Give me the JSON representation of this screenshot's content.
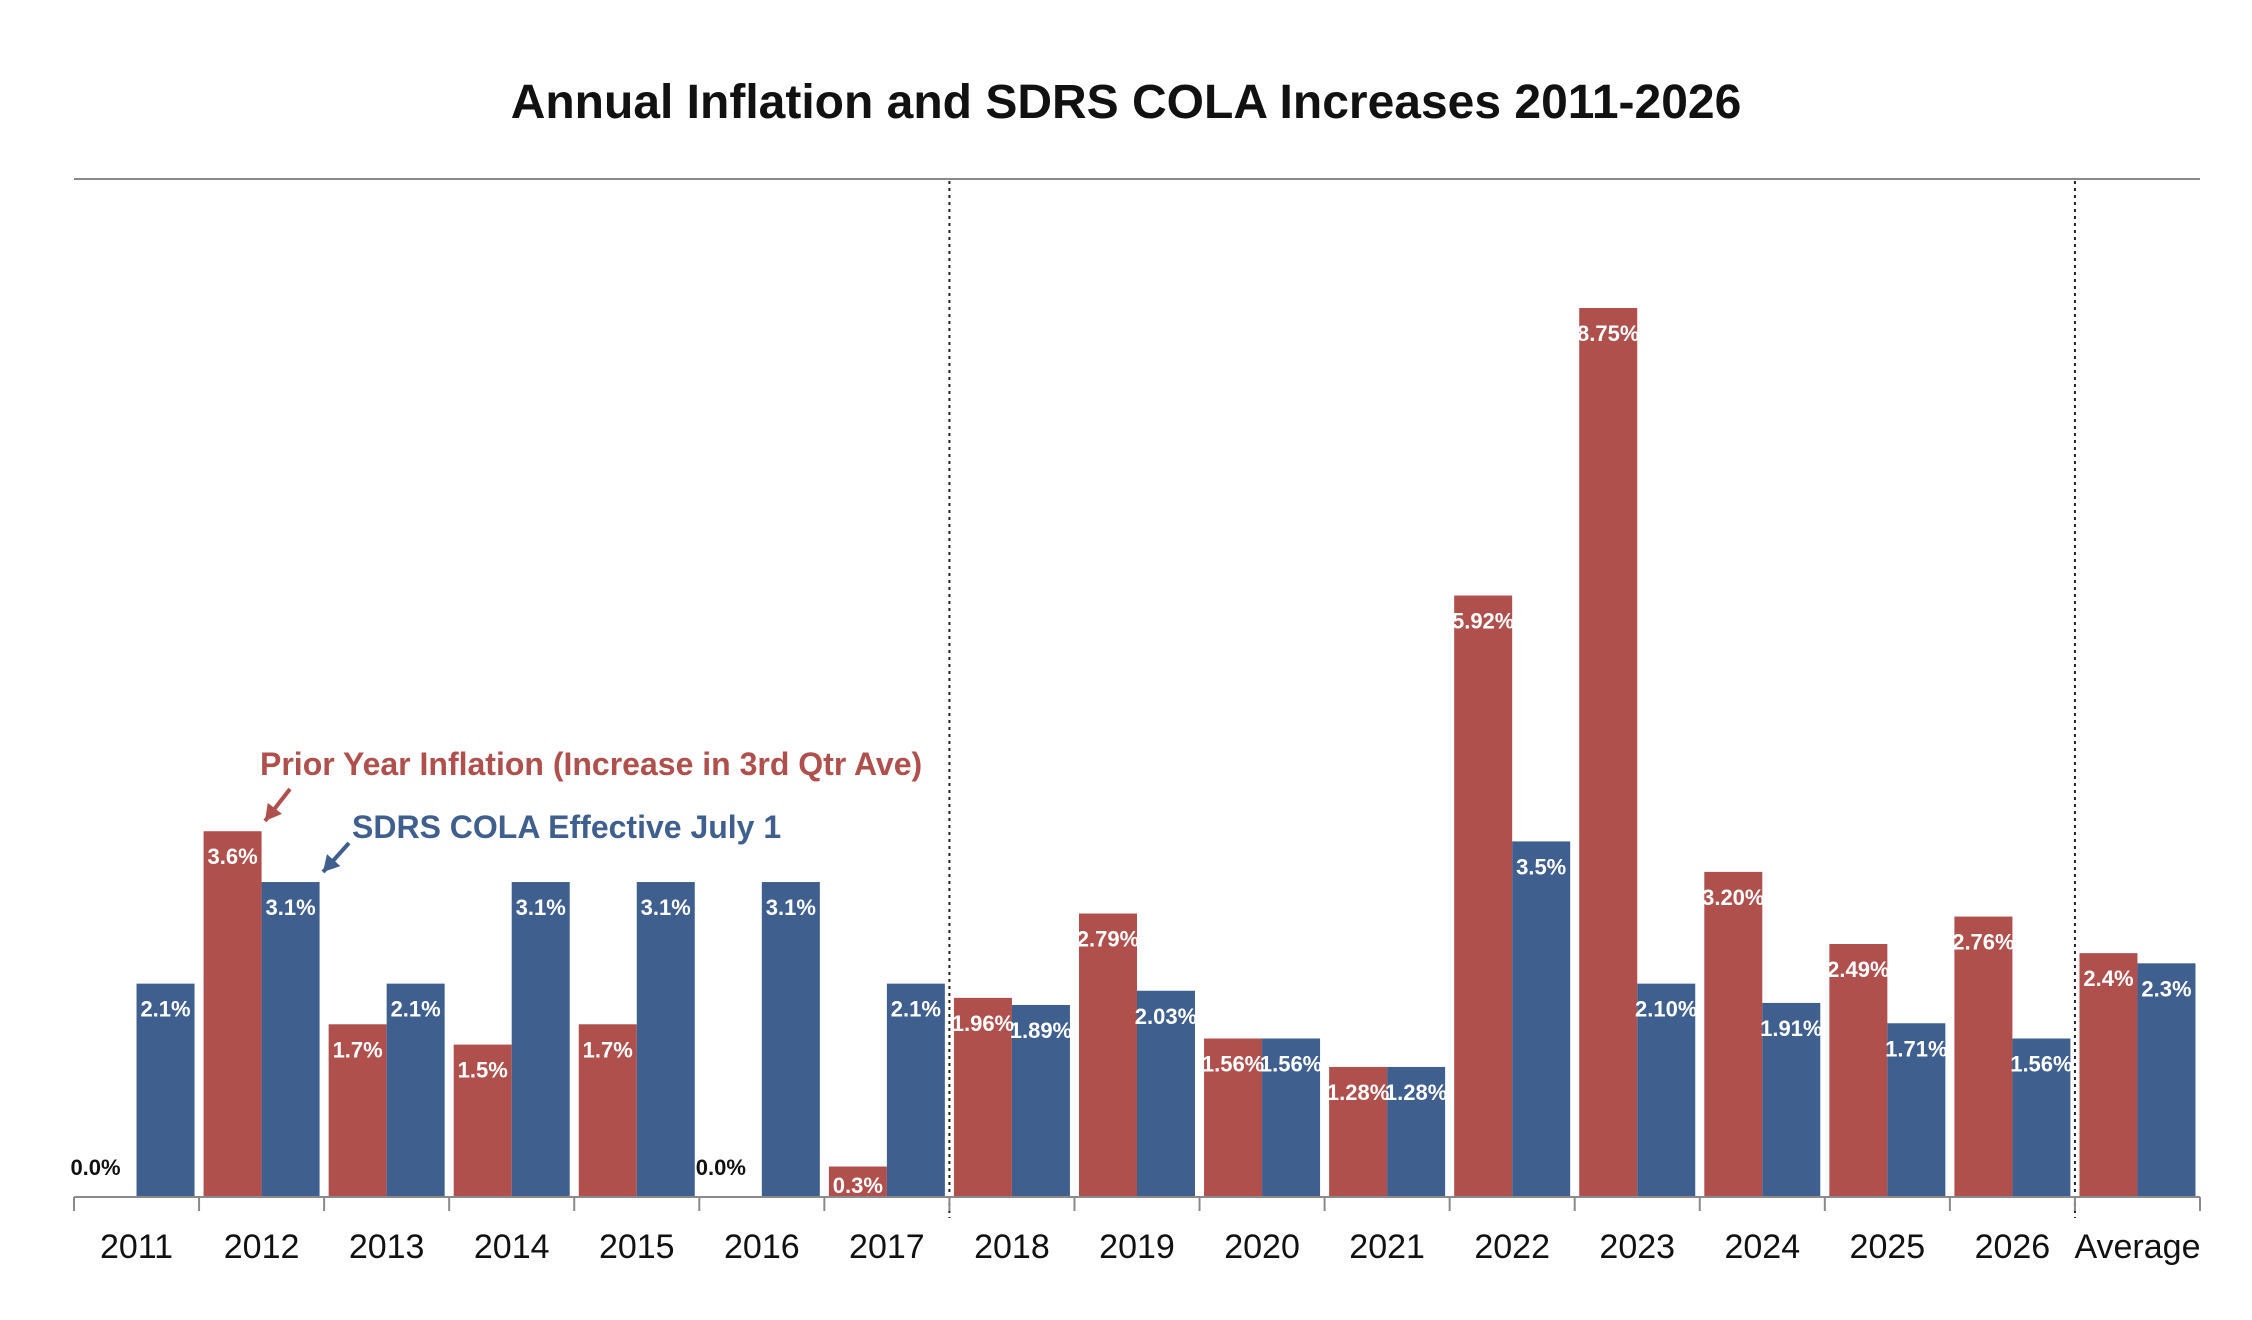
{
  "chart_data": {
    "type": "bar",
    "title": "Annual Inflation and SDRS COLA Increases 2011-2026",
    "xlabel": "",
    "ylabel": "",
    "ylim": [
      0,
      9.5
    ],
    "grid": false,
    "categories": [
      "2011",
      "2012",
      "2013",
      "2014",
      "2015",
      "2016",
      "2017",
      "2018",
      "2019",
      "2020",
      "2021",
      "2022",
      "2023",
      "2024",
      "2025",
      "2026",
      "Average"
    ],
    "series": [
      {
        "name": "Prior Year Inflation (Increase in 3rd Qtr Ave)",
        "color": "#B0504C",
        "values": [
          0.0,
          3.6,
          1.7,
          1.5,
          1.7,
          0.0,
          0.3,
          1.96,
          2.79,
          1.56,
          1.28,
          5.92,
          8.75,
          3.2,
          2.49,
          2.76,
          2.4
        ],
        "labels": [
          "0.0%",
          "3.6%",
          "1.7%",
          "1.5%",
          "1.7%",
          "0.0%",
          "0.3%",
          "1.96%",
          "2.79%",
          "1.56%",
          "1.28%",
          "5.92%",
          "8.75%",
          "3.20%",
          "2.49%",
          "2.76%",
          "2.4%"
        ]
      },
      {
        "name": "SDRS COLA Effective July 1",
        "color": "#3F5F8F",
        "values": [
          2.1,
          3.1,
          2.1,
          3.1,
          3.1,
          3.1,
          2.1,
          1.89,
          2.03,
          1.56,
          1.28,
          3.5,
          2.1,
          1.91,
          1.71,
          1.56,
          2.3
        ],
        "labels": [
          "2.1%",
          "3.1%",
          "2.1%",
          "3.1%",
          "3.1%",
          "3.1%",
          "2.1%",
          "1.89%",
          "2.03%",
          "1.56%",
          "1.28%",
          "3.5%",
          "2.10%",
          "1.91%",
          "1.71%",
          "1.56%",
          "2.3%"
        ]
      }
    ],
    "annotations": [
      {
        "text": "Prior Year Inflation (Increase in 3rd Qtr Ave)",
        "points_to": "2012 inflation bar",
        "color": "#B0504C"
      },
      {
        "text": "SDRS COLA Effective July 1",
        "points_to": "2012 COLA bar",
        "color": "#3F5F8F"
      }
    ],
    "period_dividers": [
      "between 2017 and 2018",
      "between 2026 and Average"
    ]
  }
}
